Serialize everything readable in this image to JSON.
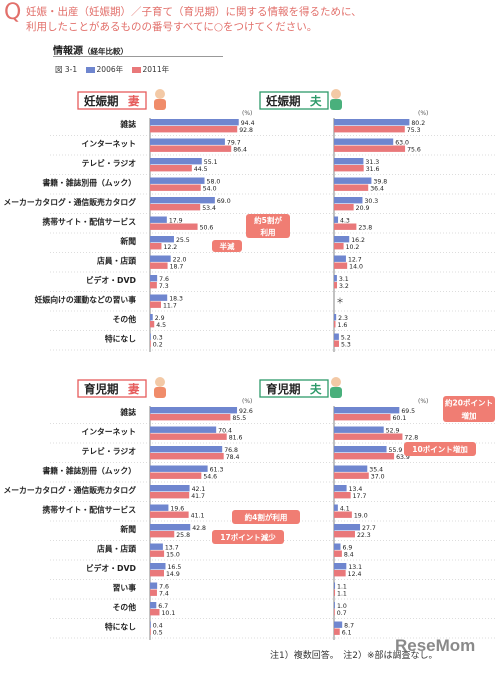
{
  "header": {
    "q_mark": "Q",
    "question_line1": "妊娠・出産（妊娠期）／子育て（育児期）に関する情報を得るために、",
    "question_line2": "利用したことがあるものの番号すべてに○をつけてください。",
    "source_title": "情報源",
    "source_subtitle": "（経年比較）",
    "figure_number": "図 3-1"
  },
  "legend": {
    "y2006": "2006年",
    "y2011": "2011年"
  },
  "colors": {
    "y2006": "#6f86cf",
    "y2011": "#e9787a",
    "accent_red": "#e65c5c",
    "accent_green": "#2e9a6a",
    "annotation": "#f07d73"
  },
  "footnote": "注1）複数回答。　注2）※部は調査なし。",
  "logo": "ReseMom",
  "chart_data": [
    {
      "type": "bar",
      "panel": "妊娠期",
      "group_label": "妊娠期",
      "subgroup": "妻",
      "unit": "(%)",
      "categories": [
        "雑誌",
        "インターネット",
        "テレビ・ラジオ",
        "書籍・雑誌別冊（ムック）",
        "メーカーカタログ・通信販売カタログ",
        "携帯サイト・配信サービス",
        "新聞",
        "店員・店頭",
        "ビデオ・DVD",
        "妊娠向けの運動などの習い事",
        "その他",
        "特になし"
      ],
      "series": [
        {
          "name": "2006年",
          "values": [
            94.4,
            79.7,
            55.1,
            58.0,
            69.0,
            17.9,
            25.5,
            22.0,
            7.6,
            18.3,
            2.9,
            0.3
          ]
        },
        {
          "name": "2011年",
          "values": [
            92.8,
            86.4,
            44.5,
            54.0,
            53.4,
            50.6,
            12.2,
            18.7,
            7.3,
            11.7,
            4.5,
            0.2
          ]
        }
      ],
      "annotations": [
        "約5割が\n利用",
        "半減"
      ]
    },
    {
      "type": "bar",
      "panel": "妊娠期",
      "group_label": "妊娠期",
      "subgroup": "夫",
      "unit": "(%)",
      "categories": [
        "雑誌",
        "インターネット",
        "テレビ・ラジオ",
        "書籍・雑誌別冊（ムック）",
        "メーカーカタログ・通信販売カタログ",
        "携帯サイト・配信サービス",
        "新聞",
        "店員・店頭",
        "ビデオ・DVD",
        "妊娠向けの運動などの習い事",
        "その他",
        "特になし"
      ],
      "series": [
        {
          "name": "2006年",
          "values": [
            80.2,
            63.0,
            31.3,
            39.8,
            30.3,
            4.3,
            16.2,
            12.7,
            3.1,
            null,
            2.3,
            5.2
          ]
        },
        {
          "name": "2011年",
          "values": [
            75.3,
            75.6,
            31.6,
            36.4,
            20.9,
            23.8,
            10.2,
            14.0,
            3.2,
            null,
            1.6,
            5.3
          ]
        }
      ],
      "no_survey_mark": "＊",
      "annotations": []
    },
    {
      "type": "bar",
      "panel": "育児期",
      "group_label": "育児期",
      "subgroup": "妻",
      "unit": "(%)",
      "categories": [
        "雑誌",
        "インターネット",
        "テレビ・ラジオ",
        "書籍・雑誌別冊（ムック）",
        "メーカーカタログ・通信販売カタログ",
        "携帯サイト・配信サービス",
        "新聞",
        "店員・店頭",
        "ビデオ・DVD",
        "習い事",
        "その他",
        "特になし"
      ],
      "series": [
        {
          "name": "2006年",
          "values": [
            92.6,
            70.4,
            76.8,
            61.3,
            42.1,
            19.6,
            42.8,
            13.7,
            16.5,
            7.6,
            6.7,
            0.4
          ]
        },
        {
          "name": "2011年",
          "values": [
            85.5,
            81.6,
            78.4,
            54.6,
            41.7,
            41.1,
            25.8,
            15.0,
            14.9,
            7.4,
            10.1,
            0.5
          ]
        }
      ],
      "annotations": [
        "約4割が利用",
        "17ポイント減少"
      ]
    },
    {
      "type": "bar",
      "panel": "育児期",
      "group_label": "育児期",
      "subgroup": "夫",
      "unit": "(%)",
      "categories": [
        "雑誌",
        "インターネット",
        "テレビ・ラジオ",
        "書籍・雑誌別冊（ムック）",
        "メーカーカタログ・通信販売カタログ",
        "携帯サイト・配信サービス",
        "新聞",
        "店員・店頭",
        "ビデオ・DVD",
        "習い事",
        "その他",
        "特になし"
      ],
      "series": [
        {
          "name": "2006年",
          "values": [
            69.5,
            52.9,
            55.9,
            35.4,
            13.4,
            4.1,
            27.7,
            6.9,
            13.1,
            1.1,
            1.0,
            8.7
          ]
        },
        {
          "name": "2011年",
          "values": [
            60.1,
            72.8,
            63.9,
            37.0,
            17.7,
            19.0,
            22.3,
            8.4,
            12.4,
            1.1,
            0.7,
            6.1
          ]
        }
      ],
      "annotations": [
        "約20ポイント\n増加",
        "10ポイント増加"
      ]
    }
  ]
}
